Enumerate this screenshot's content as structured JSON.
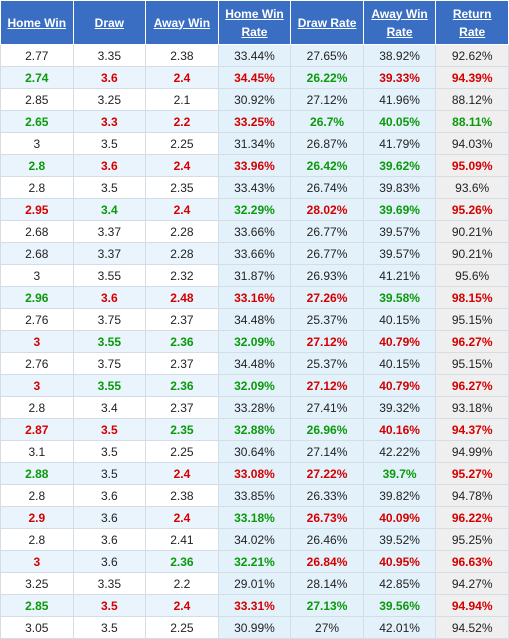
{
  "table": {
    "headers": [
      "Home Win",
      "Draw",
      "Away Win",
      "Home Win Rate",
      "Draw Rate",
      "Away Win Rate",
      "Return Rate"
    ],
    "rows": [
      [
        "2.77",
        "3.35",
        "2.38",
        "33.44%",
        "27.65%",
        "38.92%",
        "92.62%"
      ],
      [
        "2.74",
        "3.6",
        "2.4",
        "34.45%",
        "26.22%",
        "39.33%",
        "94.39%"
      ],
      [
        "2.85",
        "3.25",
        "2.1",
        "30.92%",
        "27.12%",
        "41.96%",
        "88.12%"
      ],
      [
        "2.65",
        "3.3",
        "2.2",
        "33.25%",
        "26.7%",
        "40.05%",
        "88.11%"
      ],
      [
        "3",
        "3.5",
        "2.25",
        "31.34%",
        "26.87%",
        "41.79%",
        "94.03%"
      ],
      [
        "2.8",
        "3.6",
        "2.4",
        "33.96%",
        "26.42%",
        "39.62%",
        "95.09%"
      ],
      [
        "2.8",
        "3.5",
        "2.35",
        "33.43%",
        "26.74%",
        "39.83%",
        "93.6%"
      ],
      [
        "2.95",
        "3.4",
        "2.4",
        "32.29%",
        "28.02%",
        "39.69%",
        "95.26%"
      ],
      [
        "2.68",
        "3.37",
        "2.28",
        "33.66%",
        "26.77%",
        "39.57%",
        "90.21%"
      ],
      [
        "2.68",
        "3.37",
        "2.28",
        "33.66%",
        "26.77%",
        "39.57%",
        "90.21%"
      ],
      [
        "3",
        "3.55",
        "2.32",
        "31.87%",
        "26.93%",
        "41.21%",
        "95.6%"
      ],
      [
        "2.96",
        "3.6",
        "2.48",
        "33.16%",
        "27.26%",
        "39.58%",
        "98.15%"
      ],
      [
        "2.76",
        "3.75",
        "2.37",
        "34.48%",
        "25.37%",
        "40.15%",
        "95.15%"
      ],
      [
        "3",
        "3.55",
        "2.36",
        "32.09%",
        "27.12%",
        "40.79%",
        "96.27%"
      ],
      [
        "2.76",
        "3.75",
        "2.37",
        "34.48%",
        "25.37%",
        "40.15%",
        "95.15%"
      ],
      [
        "3",
        "3.55",
        "2.36",
        "32.09%",
        "27.12%",
        "40.79%",
        "96.27%"
      ],
      [
        "2.8",
        "3.4",
        "2.37",
        "33.28%",
        "27.41%",
        "39.32%",
        "93.18%"
      ],
      [
        "2.87",
        "3.5",
        "2.35",
        "32.88%",
        "26.96%",
        "40.16%",
        "94.37%"
      ],
      [
        "3.1",
        "3.5",
        "2.25",
        "30.64%",
        "27.14%",
        "42.22%",
        "94.99%"
      ],
      [
        "2.88",
        "3.5",
        "2.4",
        "33.08%",
        "27.22%",
        "39.7%",
        "95.27%"
      ],
      [
        "2.8",
        "3.6",
        "2.38",
        "33.85%",
        "26.33%",
        "39.82%",
        "94.78%"
      ],
      [
        "2.9",
        "3.6",
        "2.4",
        "33.18%",
        "26.73%",
        "40.09%",
        "96.22%"
      ],
      [
        "2.8",
        "3.6",
        "2.41",
        "34.02%",
        "26.46%",
        "39.52%",
        "95.25%"
      ],
      [
        "3",
        "3.6",
        "2.36",
        "32.21%",
        "26.84%",
        "40.95%",
        "96.63%"
      ],
      [
        "3.25",
        "3.35",
        "2.2",
        "29.01%",
        "28.14%",
        "42.85%",
        "94.27%"
      ],
      [
        "2.85",
        "3.5",
        "2.4",
        "33.31%",
        "27.13%",
        "39.56%",
        "94.94%"
      ],
      [
        "3.05",
        "3.5",
        "2.25",
        "30.99%",
        "27%",
        "42.01%",
        "94.52%"
      ]
    ],
    "cell_colors": [
      [
        "black",
        "black",
        "black",
        "black",
        "black",
        "black",
        "black"
      ],
      [
        "green",
        "red",
        "red",
        "red",
        "green",
        "red",
        "red"
      ],
      [
        "black",
        "black",
        "black",
        "black",
        "black",
        "black",
        "black"
      ],
      [
        "green",
        "red",
        "red",
        "red",
        "green",
        "green",
        "green"
      ],
      [
        "black",
        "black",
        "black",
        "black",
        "black",
        "black",
        "black"
      ],
      [
        "green",
        "red",
        "red",
        "red",
        "green",
        "green",
        "red"
      ],
      [
        "black",
        "black",
        "black",
        "black",
        "black",
        "black",
        "black"
      ],
      [
        "red",
        "green",
        "red",
        "green",
        "red",
        "green",
        "red"
      ],
      [
        "black",
        "black",
        "black",
        "black",
        "black",
        "black",
        "black"
      ],
      [
        "black",
        "black",
        "black",
        "black",
        "black",
        "black",
        "black"
      ],
      [
        "black",
        "black",
        "black",
        "black",
        "black",
        "black",
        "black"
      ],
      [
        "green",
        "red",
        "red",
        "red",
        "red",
        "green",
        "red"
      ],
      [
        "black",
        "black",
        "black",
        "black",
        "black",
        "black",
        "black"
      ],
      [
        "red",
        "green",
        "green",
        "green",
        "red",
        "red",
        "red"
      ],
      [
        "black",
        "black",
        "black",
        "black",
        "black",
        "black",
        "black"
      ],
      [
        "red",
        "green",
        "green",
        "green",
        "red",
        "red",
        "red"
      ],
      [
        "black",
        "black",
        "black",
        "black",
        "black",
        "black",
        "black"
      ],
      [
        "red",
        "red",
        "green",
        "green",
        "green",
        "red",
        "red"
      ],
      [
        "black",
        "black",
        "black",
        "black",
        "black",
        "black",
        "black"
      ],
      [
        "green",
        "black",
        "red",
        "red",
        "red",
        "green",
        "red"
      ],
      [
        "black",
        "black",
        "black",
        "black",
        "black",
        "black",
        "black"
      ],
      [
        "red",
        "black",
        "red",
        "green",
        "red",
        "red",
        "red"
      ],
      [
        "black",
        "black",
        "black",
        "black",
        "black",
        "black",
        "black"
      ],
      [
        "red",
        "black",
        "green",
        "green",
        "red",
        "red",
        "red"
      ],
      [
        "black",
        "black",
        "black",
        "black",
        "black",
        "black",
        "black"
      ],
      [
        "green",
        "red",
        "red",
        "red",
        "green",
        "green",
        "red"
      ],
      [
        "black",
        "black",
        "black",
        "black",
        "black",
        "black",
        "black"
      ]
    ]
  }
}
